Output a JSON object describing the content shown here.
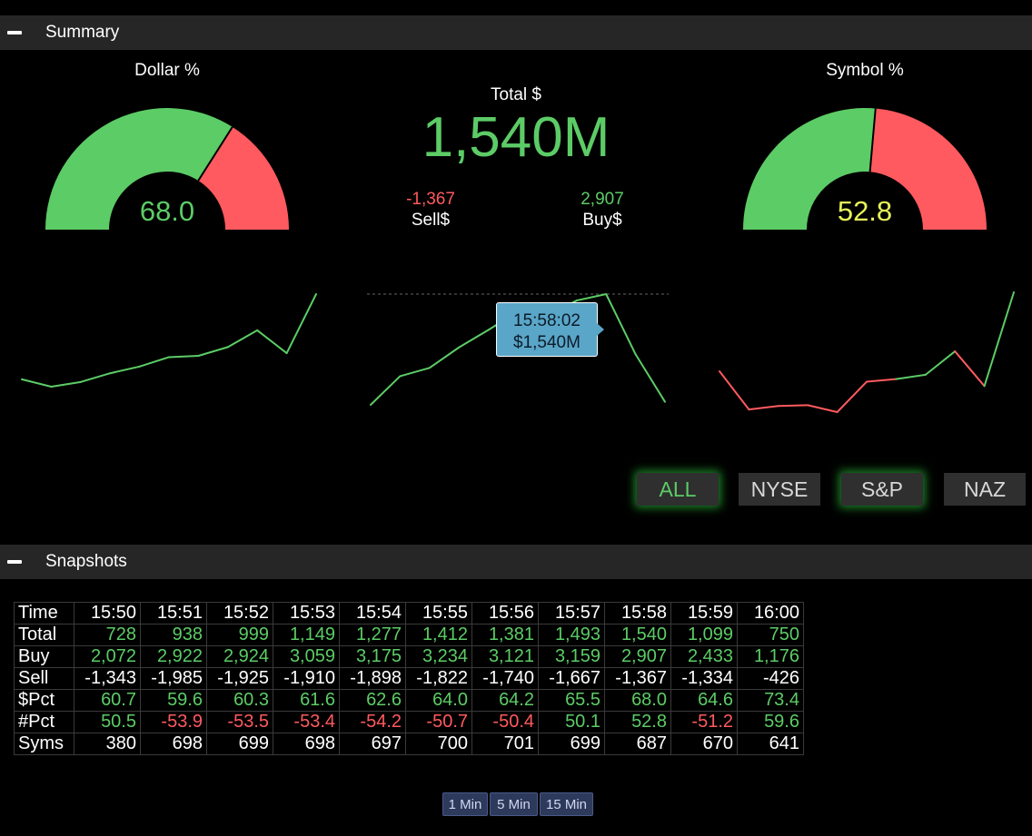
{
  "summary": {
    "title": "Summary",
    "dollar_gauge": {
      "title": "Dollar %",
      "value": "68.0",
      "pct": 68.0,
      "value_color": "#5ccc66"
    },
    "symbol_gauge": {
      "title": "Symbol %",
      "value": "52.8",
      "pct": 52.8,
      "value_color": "#e5f25a"
    },
    "total_label": "Total $",
    "total_value": "1,540M",
    "sell_value": "-1,367",
    "sell_label": "Sell$",
    "buy_value": "2,907",
    "buy_label": "Buy$",
    "tooltip": {
      "time": "15:58:02",
      "value": "$1,540M"
    },
    "filters": [
      "ALL",
      "NYSE",
      "S&P",
      "NAZ"
    ],
    "colors": {
      "green": "#5ccc66",
      "red": "#ff5a5f"
    }
  },
  "snapshots": {
    "title": "Snapshots",
    "times": [
      "15:50",
      "15:51",
      "15:52",
      "15:53",
      "15:54",
      "15:55",
      "15:56",
      "15:57",
      "15:58",
      "15:59",
      "16:00"
    ],
    "rows": [
      {
        "label": "Time"
      },
      {
        "label": "Total",
        "values": [
          "728",
          "938",
          "999",
          "1,149",
          "1,277",
          "1,412",
          "1,381",
          "1,493",
          "1,540",
          "1,099",
          "750"
        ]
      },
      {
        "label": "Buy",
        "values": [
          "2,072",
          "2,922",
          "2,924",
          "3,059",
          "3,175",
          "3,234",
          "3,121",
          "3,159",
          "2,907",
          "2,433",
          "1,176"
        ]
      },
      {
        "label": "Sell",
        "values": [
          "-1,343",
          "-1,985",
          "-1,925",
          "-1,910",
          "-1,898",
          "-1,822",
          "-1,740",
          "-1,667",
          "-1,367",
          "-1,334",
          "-426"
        ]
      },
      {
        "label": "$Pct",
        "values": [
          "60.7",
          "59.6",
          "60.3",
          "61.6",
          "62.6",
          "64.0",
          "64.2",
          "65.5",
          "68.0",
          "64.6",
          "73.4"
        ]
      },
      {
        "label": "#Pct",
        "values": [
          "50.5",
          "-53.9",
          "-53.5",
          "-53.4",
          "-54.2",
          "-50.7",
          "-50.4",
          "50.1",
          "52.8",
          "-51.2",
          "59.6"
        ]
      },
      {
        "label": "Syms",
        "values": [
          "380",
          "698",
          "699",
          "698",
          "697",
          "700",
          "701",
          "699",
          "687",
          "670",
          "641"
        ]
      }
    ],
    "timeframes": [
      "1 Min",
      "5 Min",
      "15 Min"
    ]
  },
  "chart_data": [
    {
      "type": "line",
      "series": [
        {
          "values": [
            60.7,
            59.6,
            60.3,
            61.6,
            62.6,
            64.0,
            64.2,
            65.5,
            68.0,
            64.6,
            73.4
          ]
        }
      ]
    },
    {
      "type": "line",
      "series": [
        {
          "values": [
            728,
            938,
            999,
            1149,
            1277,
            1412,
            1381,
            1493,
            1540,
            1099,
            750
          ]
        }
      ]
    },
    {
      "type": "line",
      "series": [
        {
          "values": [
            50.5,
            46.1,
            46.5,
            46.6,
            45.8,
            49.3,
            49.6,
            50.1,
            52.8,
            48.8,
            59.6
          ]
        }
      ]
    }
  ]
}
